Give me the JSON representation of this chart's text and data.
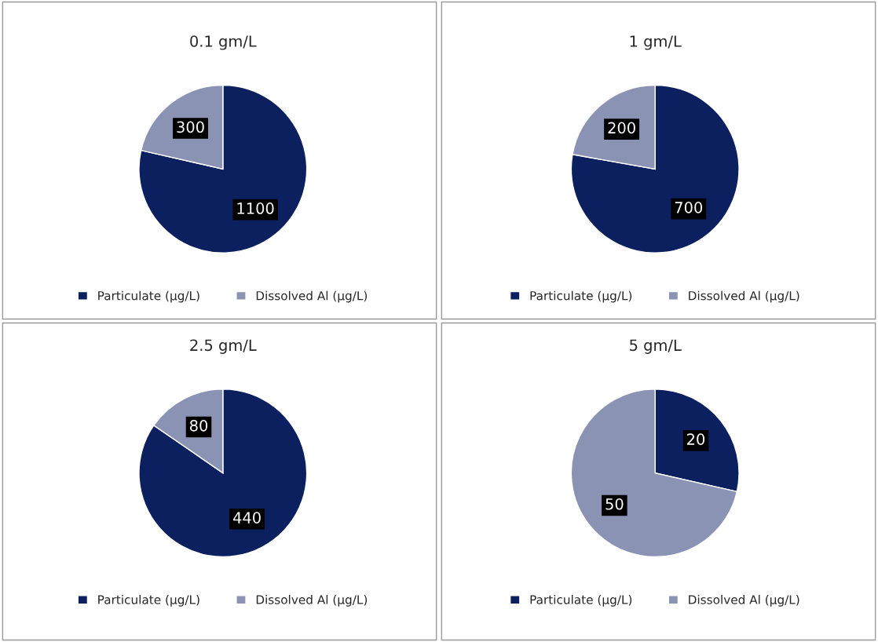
{
  "chart_data": [
    {
      "type": "pie",
      "title": "0.1 gm/L",
      "categories": [
        "Particulate (μg/L)",
        "Dissolved Al (μg/L)"
      ],
      "values": [
        1100,
        300
      ],
      "colors": [
        "#0c1f5e",
        "#8a93b4"
      ],
      "data_labels": true,
      "legend": "bottom"
    },
    {
      "type": "pie",
      "title": "1 gm/L",
      "categories": [
        "Particulate (μg/L)",
        "Dissolved Al (μg/L)"
      ],
      "values": [
        700,
        200
      ],
      "colors": [
        "#0c1f5e",
        "#8a93b4"
      ],
      "data_labels": true,
      "legend": "bottom"
    },
    {
      "type": "pie",
      "title": "2.5 gm/L",
      "categories": [
        "Particulate (μg/L)",
        "Dissolved Al (μg/L)"
      ],
      "values": [
        440,
        80
      ],
      "colors": [
        "#0c1f5e",
        "#8a93b4"
      ],
      "data_labels": true,
      "legend": "bottom"
    },
    {
      "type": "pie",
      "title": "5 gm/L",
      "categories": [
        "Particulate (μg/L)",
        "Dissolved Al (μg/L)"
      ],
      "values": [
        20,
        50
      ],
      "colors": [
        "#0c1f5e",
        "#8a93b4"
      ],
      "data_labels": true,
      "legend": "bottom"
    }
  ]
}
